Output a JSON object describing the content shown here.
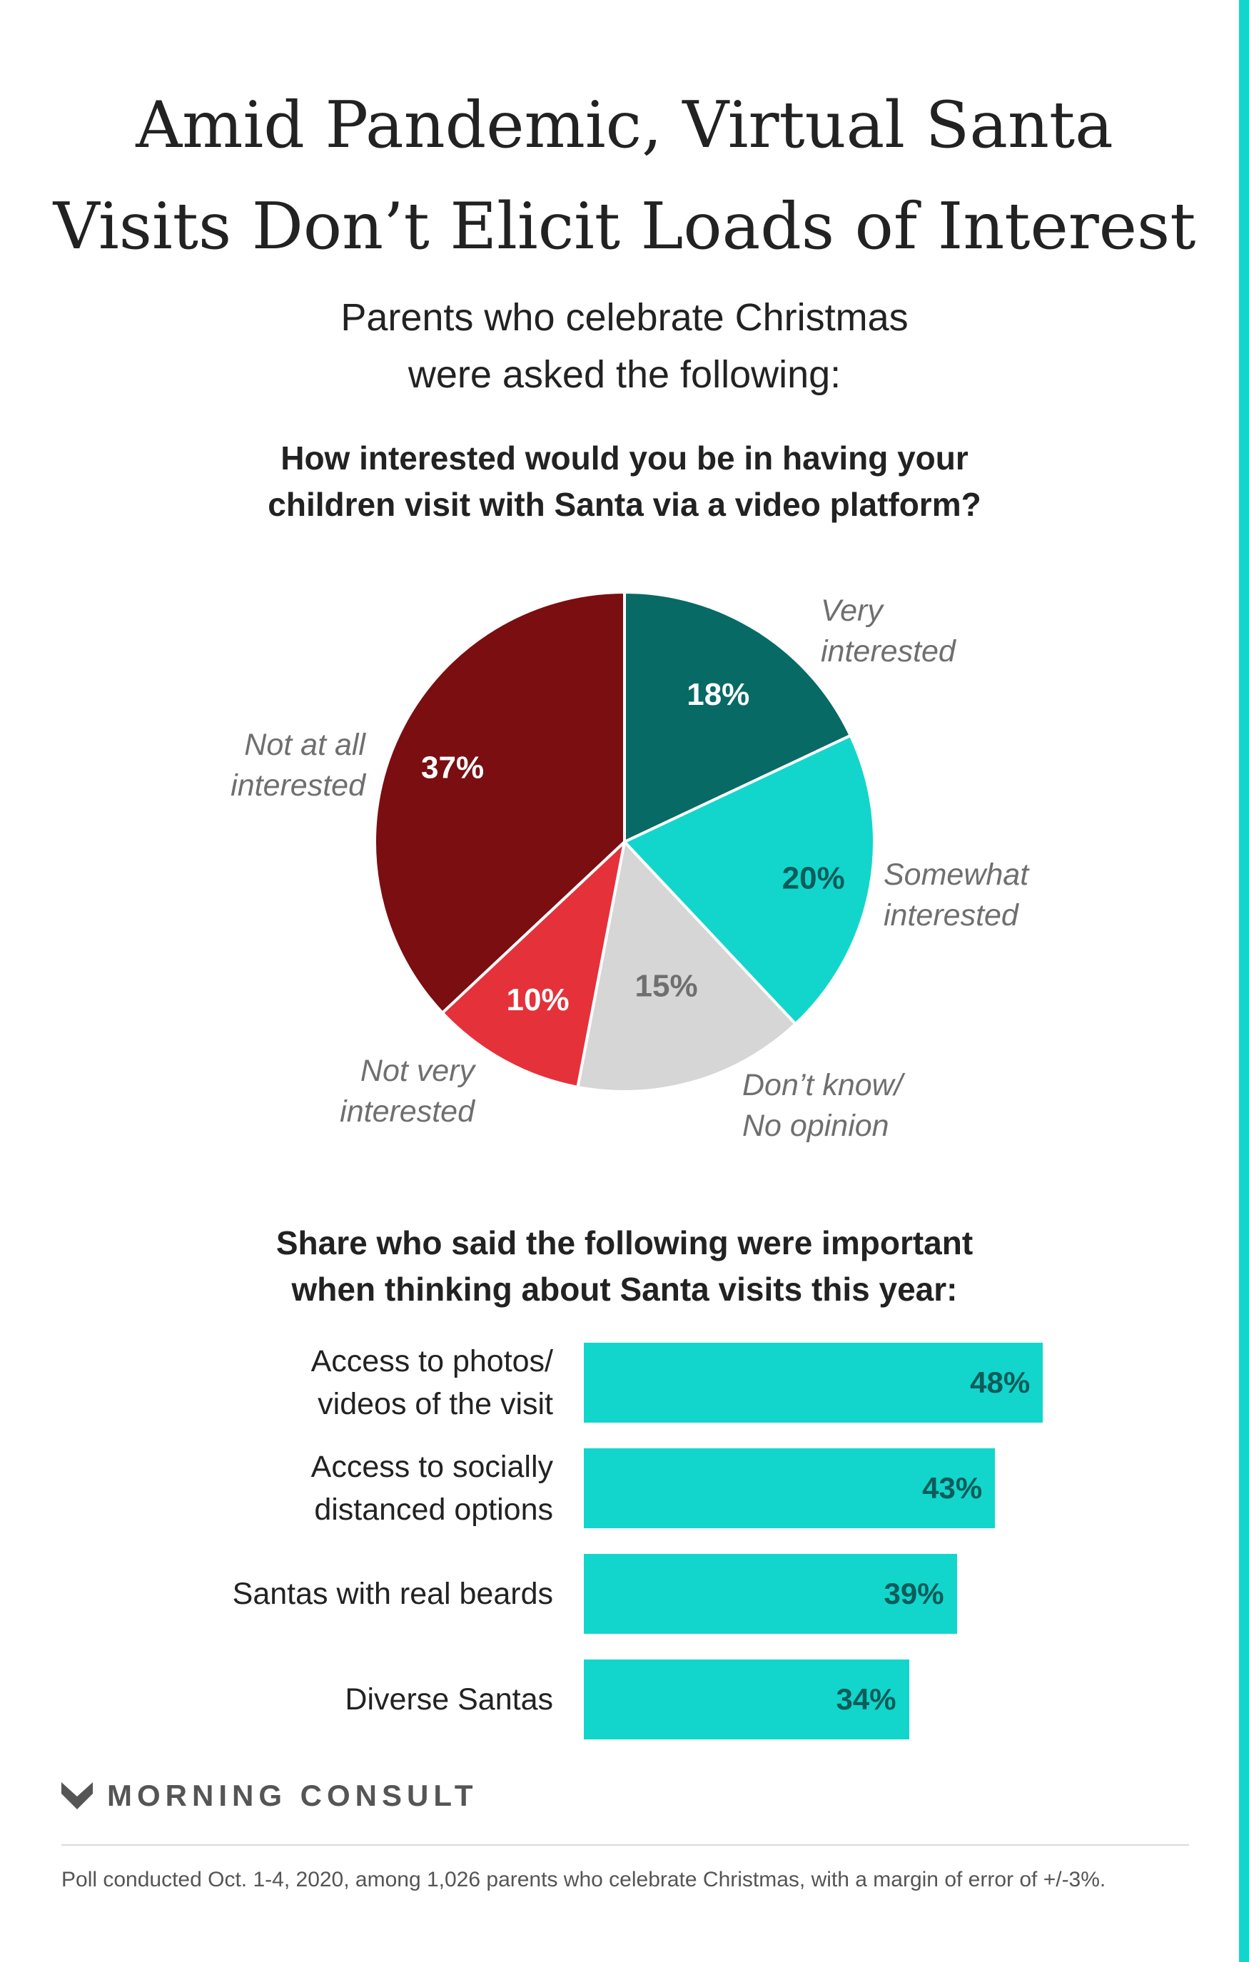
{
  "title": "Amid Pandemic, Virtual Santa Visits Don’t Elicit Loads of Interest",
  "subtitle_line1": "Parents who celebrate Christmas",
  "subtitle_line2": "were asked the following:",
  "question1_line1": "How interested would you be in having your",
  "question1_line2": "children visit with Santa via a video platform?",
  "question2_line1": "Share who said the following were important",
  "question2_line2": "when thinking about Santa visits this year:",
  "logo_text": "MORNING CONSULT",
  "footnote": "Poll conducted Oct. 1-4, 2020, among 1,026 parents who celebrate Christmas, with a margin of error of +/-3%.",
  "colors": {
    "accent": "#12d6cb",
    "very": "#076a64",
    "somewhat": "#12d6cb",
    "dontknow": "#d6d6d6",
    "notvery": "#e5313a",
    "notatall": "#7a0e11"
  },
  "chart_data": [
    {
      "type": "pie",
      "title": "How interested would you be in having your children visit with Santa via a video platform?",
      "slices": [
        {
          "label_lines": [
            "Very",
            "interested"
          ],
          "value": 18,
          "value_label": "18%",
          "color": "#076a64",
          "value_color": "#ffffff"
        },
        {
          "label_lines": [
            "Somewhat",
            "interested"
          ],
          "value": 20,
          "value_label": "20%",
          "color": "#12d6cb",
          "value_color": "#0b5c5a"
        },
        {
          "label_lines": [
            "Don’t know/",
            "No opinion"
          ],
          "value": 15,
          "value_label": "15%",
          "color": "#d6d6d6",
          "value_color": "#6f6f6f"
        },
        {
          "label_lines": [
            "Not very",
            "interested"
          ],
          "value": 10,
          "value_label": "10%",
          "color": "#e5313a",
          "value_color": "#ffffff"
        },
        {
          "label_lines": [
            "Not at all",
            "interested"
          ],
          "value": 37,
          "value_label": "37%",
          "color": "#7a0e11",
          "value_color": "#ffffff"
        }
      ]
    },
    {
      "type": "bar",
      "orientation": "horizontal",
      "title": "Share who said the following were important when thinking about Santa visits this year:",
      "categories": [
        "Access to photos/\nvideos of the visit",
        "Access to socially\ndistanced options",
        "Santas with real beards",
        "Diverse Santas"
      ],
      "values": [
        48,
        43,
        39,
        34
      ],
      "value_labels": [
        "48%",
        "43%",
        "39%",
        "34%"
      ],
      "xlim": [
        0,
        100
      ],
      "color": "#12d6cb"
    }
  ]
}
